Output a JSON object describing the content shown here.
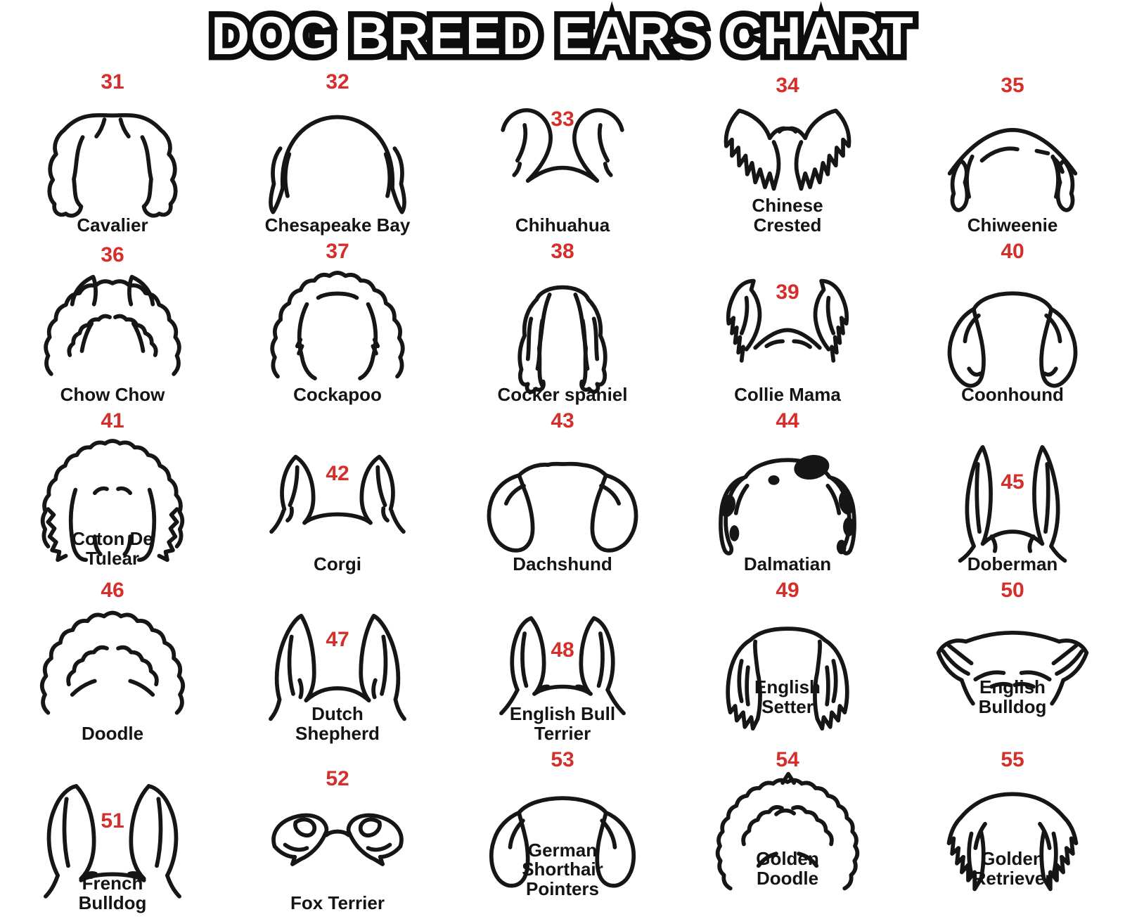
{
  "title": "DOG BREED EARS CHART",
  "colors": {
    "number_red": "#d62e2a",
    "ink": "#161616",
    "background": "#ffffff"
  },
  "items": [
    {
      "number": "31",
      "label": "Cavalier",
      "art": "cavalier"
    },
    {
      "number": "32",
      "label": "Chesapeake Bay",
      "art": "chesapeake"
    },
    {
      "number": "33",
      "label": "Chihuahua",
      "art": "chihuahua"
    },
    {
      "number": "34",
      "label": "Chinese\nCrested",
      "art": "crested"
    },
    {
      "number": "35",
      "label": "Chiweenie",
      "art": "chiweenie"
    },
    {
      "number": "36",
      "label": "Chow Chow",
      "art": "chow"
    },
    {
      "number": "37",
      "label": "Cockapoo",
      "art": "cockapoo"
    },
    {
      "number": "38",
      "label": "Cocker spaniel",
      "art": "cocker"
    },
    {
      "number": "39",
      "label": "Collie Mama",
      "art": "collie"
    },
    {
      "number": "40",
      "label": "Coonhound",
      "art": "coonhound"
    },
    {
      "number": "41",
      "label": "Coton De\nTulear",
      "art": "coton"
    },
    {
      "number": "42",
      "label": "Corgi",
      "art": "corgi"
    },
    {
      "number": "43",
      "label": "Dachshund",
      "art": "dachshund"
    },
    {
      "number": "44",
      "label": "Dalmatian",
      "art": "dalmatian"
    },
    {
      "number": "45",
      "label": "Doberman",
      "art": "doberman"
    },
    {
      "number": "46",
      "label": "Doodle",
      "art": "doodle"
    },
    {
      "number": "47",
      "label": "Dutch\nShepherd",
      "art": "dutch"
    },
    {
      "number": "48",
      "label": "English Bull\nTerrier",
      "art": "bullterrier"
    },
    {
      "number": "49",
      "label": "English\nSetter",
      "art": "setter"
    },
    {
      "number": "50",
      "label": "English\nBulldog",
      "art": "bulldog"
    },
    {
      "number": "51",
      "label": "French\nBulldog",
      "art": "frenchie"
    },
    {
      "number": "52",
      "label": "Fox Terrier",
      "art": "foxterrier"
    },
    {
      "number": "53",
      "label": "German\nShorthair\nPointers",
      "art": "pointer"
    },
    {
      "number": "54",
      "label": "Golden\nDoodle",
      "art": "goldendoodle"
    },
    {
      "number": "55",
      "label": "Golden\nRetriever",
      "art": "golden"
    }
  ]
}
